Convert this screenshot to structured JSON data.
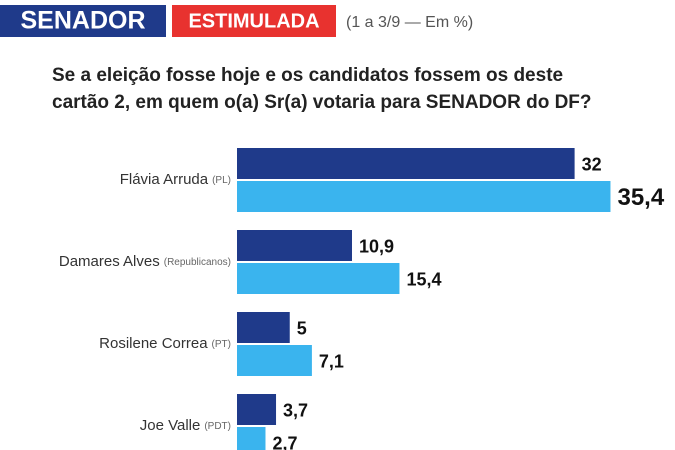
{
  "chart_data": {
    "type": "hbar",
    "tag": "SENADOR",
    "tag2": "ESTIMULADA",
    "subtitle": "(1 a 3/9 — Em %)",
    "title": [
      "Se a eleição fosse hoje e os candidatos fossem os deste",
      "cartão 2, em quem o(a) Sr(a) votaria para SENADOR do DF?"
    ],
    "categories": [
      "Flávia Arruda",
      "Damares Alves",
      "Rosilene Correa",
      "Joe Valle"
    ],
    "parties": [
      "(PL)",
      "(Republicanos)",
      "(PT)",
      "(PDT)"
    ],
    "series": [
      {
        "color": "#1f3a8a",
        "values": [
          32,
          10.9,
          5,
          3.7
        ],
        "value_labels": [
          "32",
          "10,9",
          "5",
          "3,7"
        ]
      },
      {
        "color": "#3ab4ee",
        "values": [
          35.4,
          15.4,
          7.1,
          2.7
        ],
        "value_labels": [
          "35,4",
          "15,4",
          "7,1",
          "2,7"
        ]
      }
    ]
  }
}
